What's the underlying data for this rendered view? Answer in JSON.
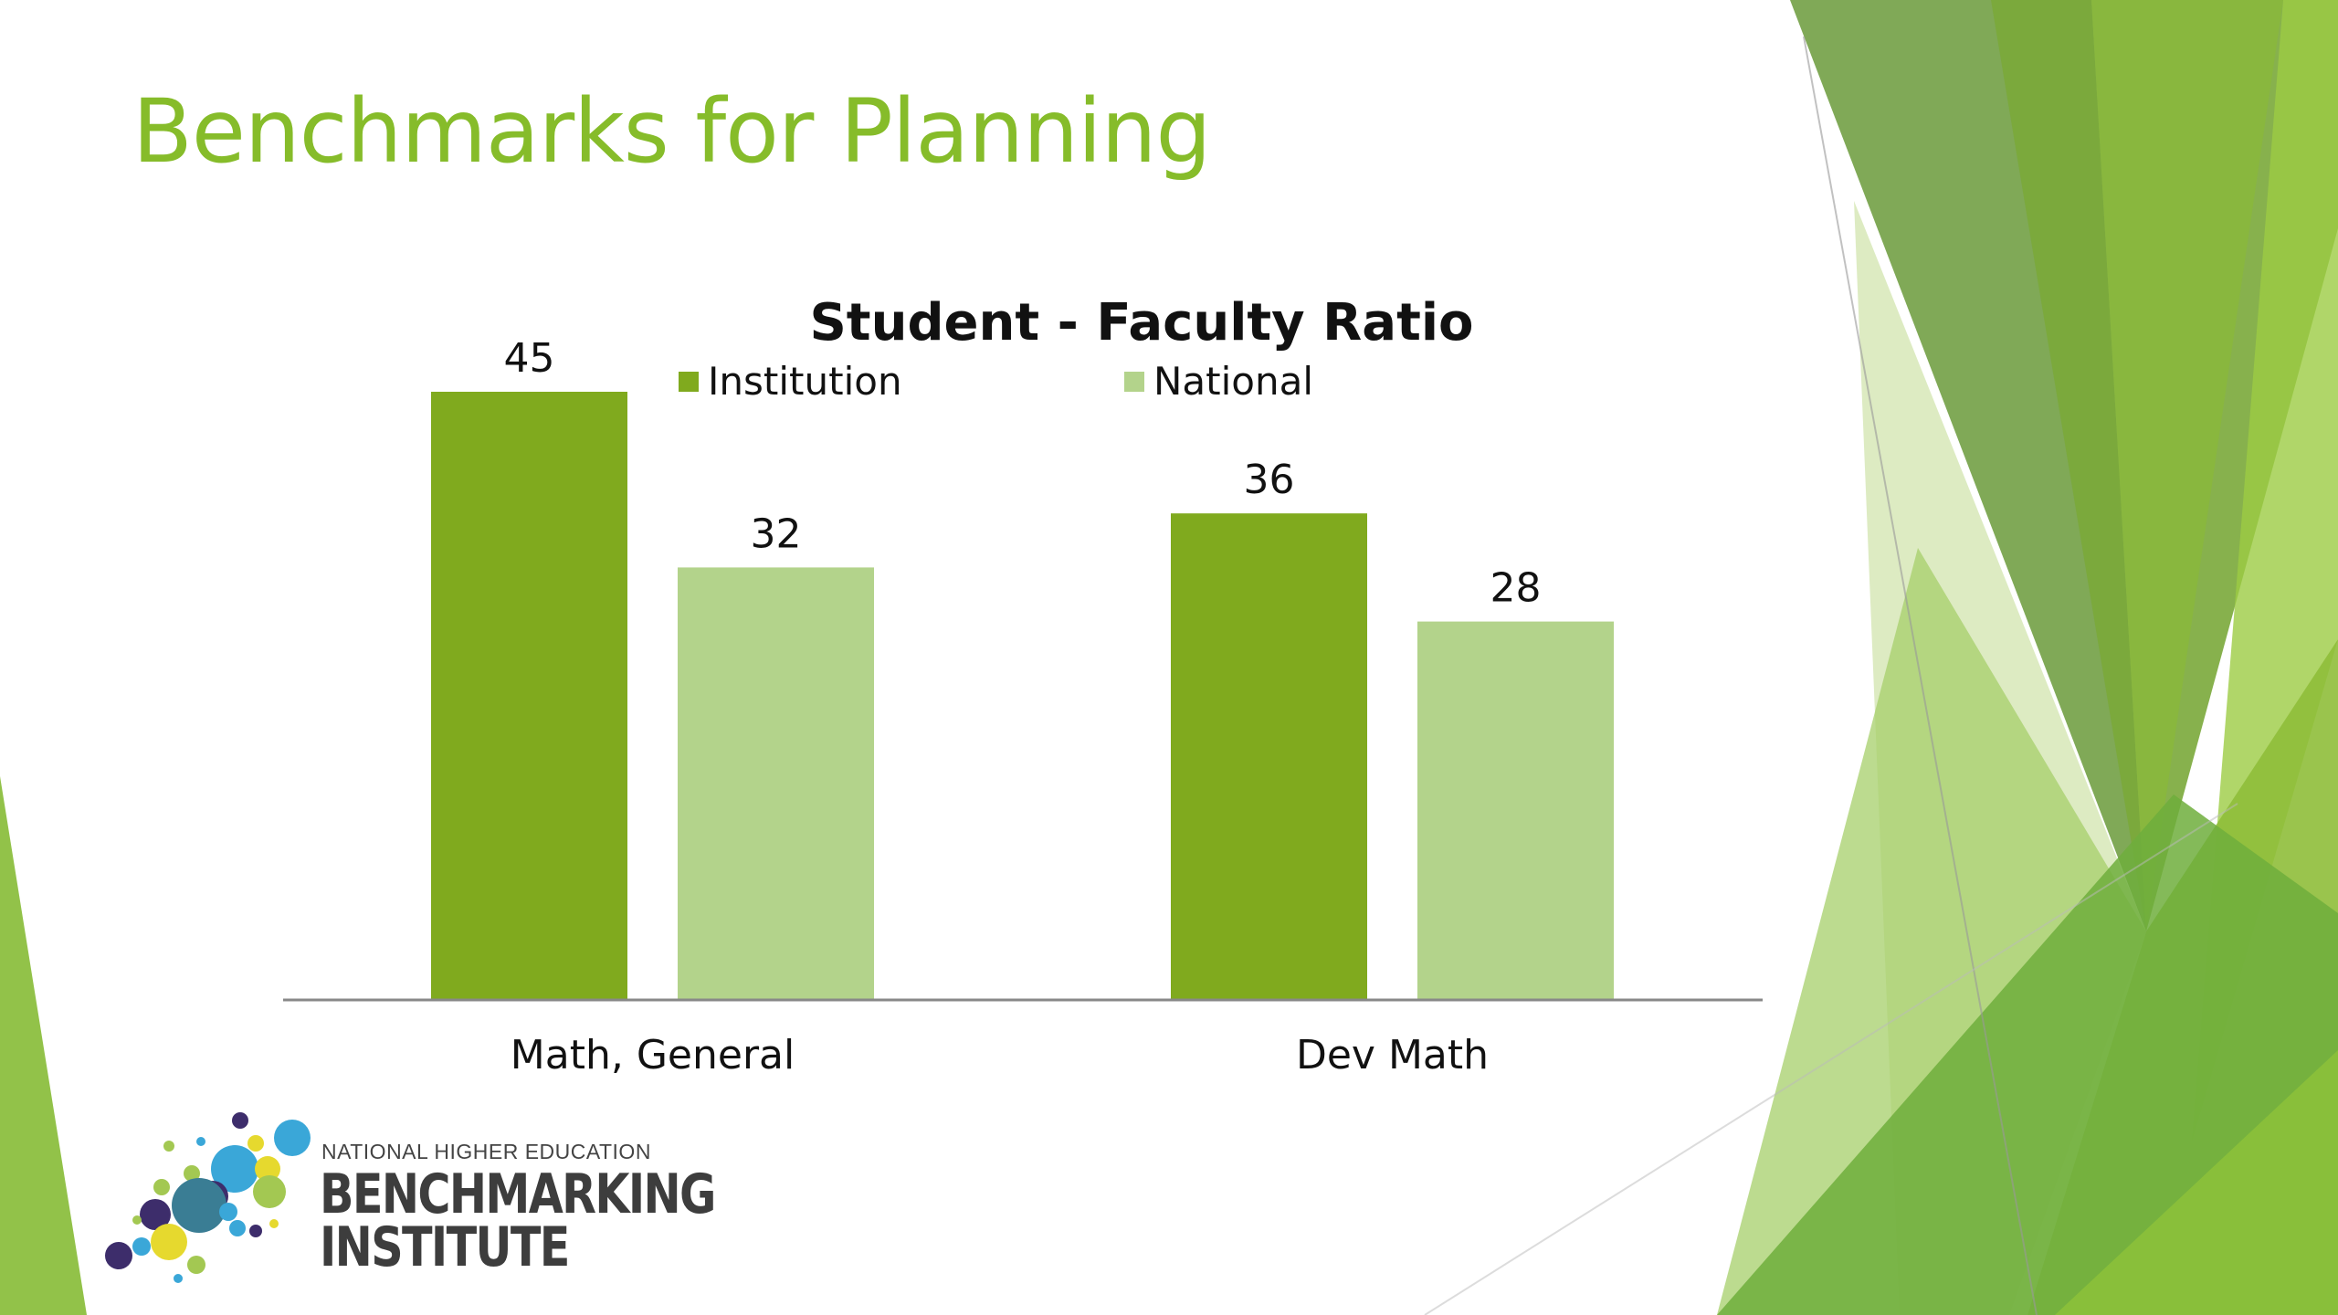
{
  "slide": {
    "title": "Benchmarks for Planning",
    "accent": "#86bc2a"
  },
  "chart_data": {
    "type": "bar",
    "title": "Student - Faculty Ratio",
    "categories": [
      "Math, General",
      "Dev Math"
    ],
    "series": [
      {
        "name": "Institution",
        "values": [
          45,
          36
        ],
        "color": "#80aa1e"
      },
      {
        "name": "National",
        "values": [
          32,
          28
        ],
        "color": "#b3d38b"
      }
    ],
    "legend_position": "top",
    "data_labels": true,
    "grid": false,
    "ylim": [
      0,
      50
    ]
  },
  "logo": {
    "line1": "NATIONAL HIGHER EDUCATION",
    "line2": "BENCHMARKING",
    "line3": "INSTITUTE",
    "icon": "dots-cluster-icon"
  }
}
